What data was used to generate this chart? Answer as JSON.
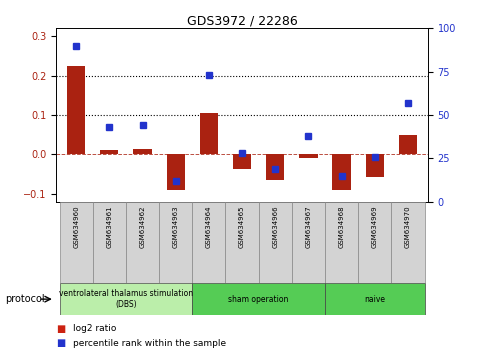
{
  "title": "GDS3972 / 22286",
  "samples": [
    "GSM634960",
    "GSM634961",
    "GSM634962",
    "GSM634963",
    "GSM634964",
    "GSM634965",
    "GSM634966",
    "GSM634967",
    "GSM634968",
    "GSM634969",
    "GSM634970"
  ],
  "log2_ratio": [
    0.225,
    0.012,
    0.015,
    -0.09,
    0.105,
    -0.038,
    -0.065,
    -0.008,
    -0.09,
    -0.058,
    0.05
  ],
  "percentile_rank": [
    90,
    43,
    44,
    12,
    73,
    28,
    19,
    38,
    15,
    26,
    57
  ],
  "bar_color": "#aa2211",
  "dot_color": "#2233cc",
  "protocol_groups": [
    {
      "label": "ventrolateral thalamus stimulation\n(DBS)",
      "start": 0,
      "end": 3,
      "color": "#bbeeaa"
    },
    {
      "label": "sham operation",
      "start": 4,
      "end": 7,
      "color": "#55cc55"
    },
    {
      "label": "naive",
      "start": 8,
      "end": 10,
      "color": "#55cc55"
    }
  ],
  "ylim_left": [
    -0.12,
    0.32
  ],
  "ylim_right": [
    0,
    100
  ],
  "yticks_left": [
    -0.1,
    0.0,
    0.1,
    0.2,
    0.3
  ],
  "yticks_right": [
    0,
    25,
    50,
    75,
    100
  ],
  "hlines": [
    0.1,
    0.2
  ],
  "legend_items": [
    "log2 ratio",
    "percentile rank within the sample"
  ],
  "legend_colors": [
    "#cc2211",
    "#2233cc"
  ],
  "protocol_label": "protocol"
}
